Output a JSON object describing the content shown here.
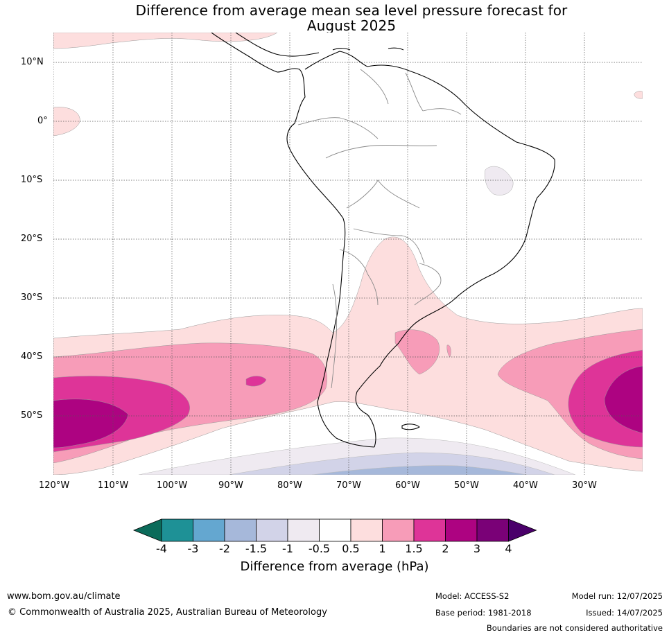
{
  "title_line1": "Difference from average mean sea level pressure forecast for",
  "title_line2": "August 2025",
  "lat_ticks": [
    {
      "label": "10°N"
    },
    {
      "label": "0°"
    },
    {
      "label": "10°S"
    },
    {
      "label": "20°S"
    },
    {
      "label": "30°S"
    },
    {
      "label": "40°S"
    },
    {
      "label": "50°S"
    }
  ],
  "lon_ticks": [
    {
      "label": "120°W"
    },
    {
      "label": "110°W"
    },
    {
      "label": "100°W"
    },
    {
      "label": "90°W"
    },
    {
      "label": "80°W"
    },
    {
      "label": "70°W"
    },
    {
      "label": "60°W"
    },
    {
      "label": "50°W"
    },
    {
      "label": "40°W"
    },
    {
      "label": "30°W"
    }
  ],
  "colorbar": {
    "title": "Difference from average (hPa)",
    "labels": [
      "-4",
      "-3",
      "-2",
      "-1.5",
      "-1",
      "-0.5",
      "0.5",
      "1",
      "1.5",
      "2",
      "3",
      "4"
    ],
    "colors": {
      "below_min": "#0b6b5a",
      "n4_n3": "#1e9196",
      "n3_n2": "#64a7d0",
      "n2_n15": "#a6b8da",
      "n15_n1": "#d2d3e8",
      "n1_n05": "#efeaf1",
      "n05_05": "#ffffff",
      "p05_1": "#fddede",
      "p1_15": "#f79cb8",
      "p15_2": "#de3498",
      "p2_3": "#ad0381",
      "p3_4": "#7a0177",
      "above_max": "#4a006a"
    }
  },
  "footer": {
    "url": "www.bom.gov.au/climate",
    "copyright": "© Commonwealth of Australia 2025, Australian Bureau of Meteorology",
    "model": "Model: ACCESS-S2",
    "base_period": "Base period: 1981-2018",
    "model_run": "Model run: 12/07/2025",
    "issued": "Issued: 14/07/2025",
    "disclaimer": "Boundaries are not considered authoritative"
  }
}
